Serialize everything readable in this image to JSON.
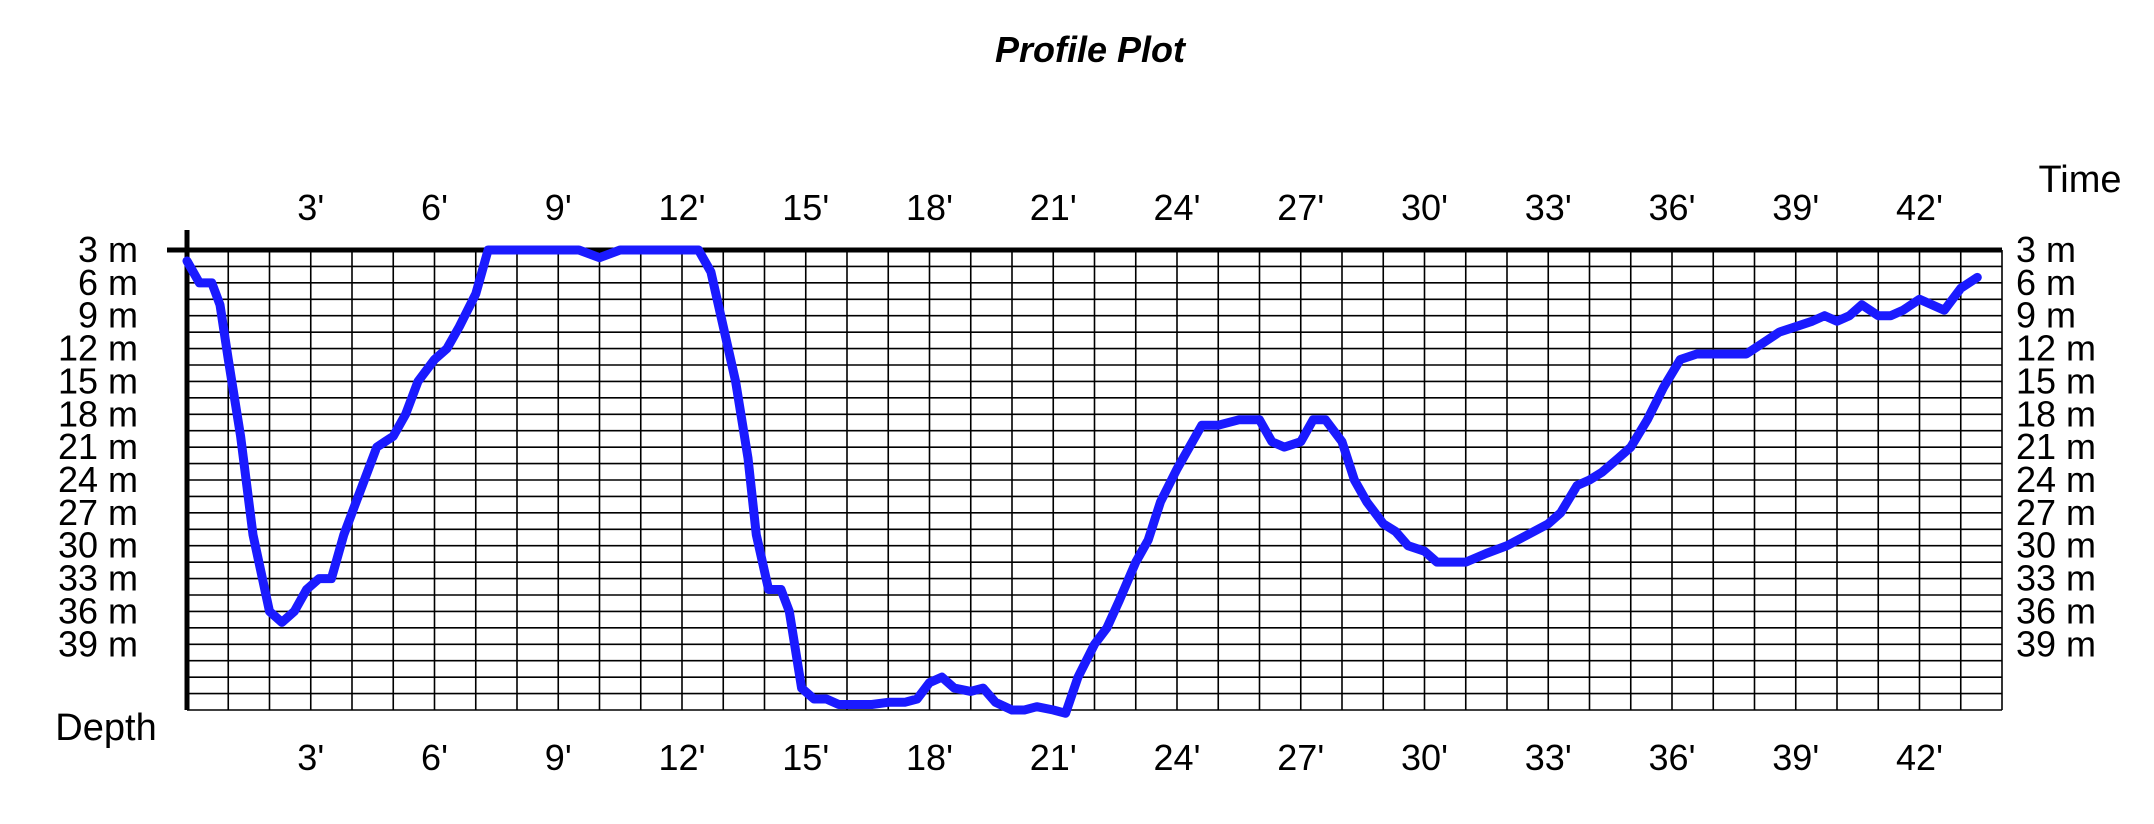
{
  "chart_data": {
    "type": "line",
    "title": "Profile Plot",
    "xlabel": "Time",
    "ylabel": "Depth",
    "x_unit": "minutes",
    "y_unit": "m",
    "xlim": [
      0,
      44
    ],
    "ylim": [
      3,
      45
    ],
    "y_reversed": true,
    "grid": true,
    "x_ticks": [
      {
        "value": 3,
        "label": "3'"
      },
      {
        "value": 6,
        "label": "6'"
      },
      {
        "value": 9,
        "label": "9'"
      },
      {
        "value": 12,
        "label": "12'"
      },
      {
        "value": 15,
        "label": "15'"
      },
      {
        "value": 18,
        "label": "18'"
      },
      {
        "value": 21,
        "label": "21'"
      },
      {
        "value": 24,
        "label": "24'"
      },
      {
        "value": 27,
        "label": "27'"
      },
      {
        "value": 30,
        "label": "30'"
      },
      {
        "value": 33,
        "label": "33'"
      },
      {
        "value": 36,
        "label": "36'"
      },
      {
        "value": 39,
        "label": "39'"
      },
      {
        "value": 42,
        "label": "42'"
      }
    ],
    "y_ticks": [
      {
        "value": 3,
        "label": "3 m"
      },
      {
        "value": 6,
        "label": "6 m"
      },
      {
        "value": 9,
        "label": "9 m"
      },
      {
        "value": 12,
        "label": "12 m"
      },
      {
        "value": 15,
        "label": "15 m"
      },
      {
        "value": 18,
        "label": "18 m"
      },
      {
        "value": 21,
        "label": "21 m"
      },
      {
        "value": 24,
        "label": "24 m"
      },
      {
        "value": 27,
        "label": "27 m"
      },
      {
        "value": 30,
        "label": "30 m"
      },
      {
        "value": 33,
        "label": "33 m"
      },
      {
        "value": 36,
        "label": "36 m"
      },
      {
        "value": 39,
        "label": "39 m"
      }
    ],
    "series": [
      {
        "color": "#1a1aff",
        "x": [
          0,
          0.3,
          0.6,
          0.8,
          1.0,
          1.3,
          1.6,
          2.0,
          2.3,
          2.6,
          2.9,
          3.2,
          3.5,
          3.8,
          4.0,
          4.3,
          4.6,
          5.0,
          5.3,
          5.6,
          6.0,
          6.3,
          6.6,
          7.0,
          7.3,
          7.6,
          8.0,
          8.3,
          8.6,
          9.0,
          9.5,
          10.0,
          10.5,
          11.0,
          11.5,
          12.0,
          12.4,
          12.7,
          13.0,
          13.3,
          13.6,
          13.8,
          14.1,
          14.4,
          14.6,
          14.9,
          15.2,
          15.5,
          15.8,
          16.2,
          16.6,
          17.0,
          17.4,
          17.7,
          18.0,
          18.3,
          18.6,
          19.0,
          19.3,
          19.6,
          20.0,
          20.3,
          20.6,
          21.0,
          21.3,
          21.6,
          22.0,
          22.3,
          22.6,
          23.0,
          23.3,
          23.6,
          24.0,
          24.3,
          24.6,
          25.0,
          25.5,
          26.0,
          26.3,
          26.6,
          27.0,
          27.3,
          27.6,
          28.0,
          28.3,
          28.6,
          29.0,
          29.3,
          29.6,
          30.0,
          30.3,
          30.6,
          31.0,
          31.5,
          32.0,
          32.5,
          33.0,
          33.3,
          33.7,
          34.0,
          34.3,
          34.7,
          35.0,
          35.4,
          35.8,
          36.2,
          36.6,
          37.0,
          37.4,
          37.8,
          38.2,
          38.6,
          39.0,
          39.4,
          39.7,
          40.0,
          40.3,
          40.6,
          41.0,
          41.3,
          41.6,
          42.0,
          42.3,
          42.6,
          43.0,
          43.4
        ],
        "y": [
          4,
          6,
          6,
          8,
          13,
          20,
          29,
          36,
          37,
          36,
          34,
          33,
          33,
          29,
          27,
          24,
          21,
          20,
          18,
          15,
          13,
          12,
          10,
          7,
          3,
          3,
          3,
          3,
          3,
          3,
          3,
          3.7,
          3,
          3,
          3,
          3,
          3,
          5,
          10,
          15,
          22,
          29,
          34,
          34,
          36,
          43,
          44,
          44,
          44.5,
          44.5,
          44.5,
          44.3,
          44.3,
          44,
          42.5,
          42,
          43,
          43.3,
          43,
          44.3,
          45,
          45,
          44.7,
          45,
          45.3,
          42,
          39,
          37.5,
          35,
          31.5,
          29.5,
          26,
          23,
          21,
          19,
          19,
          18.5,
          18.5,
          20.5,
          21,
          20.5,
          18.5,
          18.5,
          20.5,
          24,
          26,
          28,
          28.7,
          30,
          30.5,
          31.5,
          31.5,
          31.5,
          30.7,
          30,
          29,
          28,
          27,
          24.5,
          24,
          23.3,
          22,
          21,
          18.5,
          15.5,
          13,
          12.5,
          12.5,
          12.5,
          12.5,
          11.5,
          10.5,
          10,
          9.5,
          9,
          9.5,
          9,
          8,
          9,
          9,
          8.5,
          7.5,
          8,
          8.5,
          6.5,
          5.5
        ]
      }
    ]
  }
}
